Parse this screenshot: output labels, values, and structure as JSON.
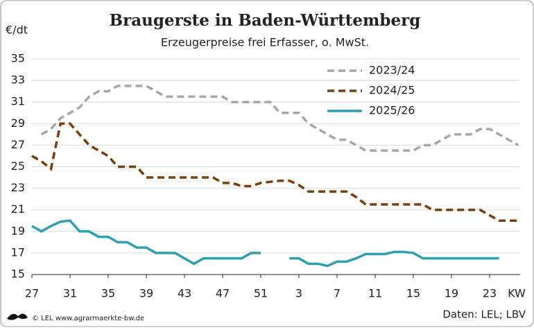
{
  "chart_data": {
    "type": "line",
    "title": "Braugerste in Baden-Württemberg",
    "subtitle": "Erzeugerpreise frei Erfasser, o. MwSt.",
    "y_label": "€/dt",
    "x_label": "KW",
    "source": "Daten: LEL; LBV",
    "credit": "© LEL www.agrarmaerkte-bw.de",
    "categories": [
      "27",
      null,
      null,
      null,
      "31",
      null,
      null,
      null,
      "35",
      null,
      null,
      null,
      "39",
      null,
      null,
      null,
      "43",
      null,
      null,
      null,
      "47",
      null,
      null,
      null,
      "51",
      null,
      null,
      null,
      "3",
      null,
      null,
      null,
      "7",
      null,
      null,
      null,
      "11",
      null,
      null,
      null,
      "15",
      null,
      null,
      null,
      "19",
      null,
      null,
      null,
      "23",
      null,
      null,
      null
    ],
    "ylim": [
      15,
      35
    ],
    "yticks": [
      15,
      17,
      19,
      21,
      23,
      25,
      27,
      29,
      31,
      33,
      35
    ],
    "grid": true,
    "series": [
      {
        "name": "2023/24",
        "color": "#a6a6a6",
        "dashed": true,
        "values": [
          null,
          28,
          28.5,
          29.5,
          30,
          30.5,
          31.5,
          32,
          32,
          32.5,
          32.5,
          32.5,
          32.5,
          32,
          31.5,
          31.5,
          31.5,
          31.5,
          31.5,
          31.5,
          31.5,
          31,
          31,
          31,
          31,
          31,
          30,
          30,
          30,
          29,
          28.5,
          28,
          27.5,
          27.5,
          27,
          26.5,
          26.5,
          26.5,
          26.5,
          26.5,
          26.5,
          27,
          27,
          27.5,
          28,
          28,
          28,
          28.5,
          28.5,
          28,
          27.5,
          27
        ]
      },
      {
        "name": "2024/25",
        "color": "#7a3e0a",
        "dashed": true,
        "values": [
          26,
          25.5,
          24.8,
          29,
          29,
          28,
          27,
          26.5,
          26,
          25,
          25,
          25,
          24,
          24,
          24,
          24,
          24,
          24,
          24,
          24,
          23.5,
          23.5,
          23.2,
          23.2,
          23.5,
          23.6,
          23.7,
          23.7,
          23.3,
          22.7,
          22.7,
          22.7,
          22.7,
          22.7,
          22.2,
          21.5,
          21.5,
          21.5,
          21.5,
          21.5,
          21.5,
          21.5,
          21,
          21,
          21,
          21,
          21,
          21,
          20.5,
          20,
          20,
          20
        ]
      },
      {
        "name": "2025/26",
        "color": "#2aa0b0",
        "dashed": false,
        "values": [
          19.5,
          19,
          19.5,
          19.9,
          20,
          19,
          19,
          18.5,
          18.5,
          18,
          18,
          17.5,
          17.5,
          17,
          17,
          17,
          16.5,
          16,
          16.5,
          16.5,
          16.5,
          16.5,
          16.5,
          17,
          17,
          null,
          null,
          16.5,
          16.5,
          16,
          16,
          15.8,
          16.2,
          16.2,
          16.5,
          16.9,
          16.9,
          16.9,
          17.1,
          17.1,
          17,
          16.5,
          16.5,
          16.5,
          16.5,
          16.5,
          16.5,
          16.5,
          16.5,
          16.5,
          null,
          null
        ]
      }
    ]
  }
}
